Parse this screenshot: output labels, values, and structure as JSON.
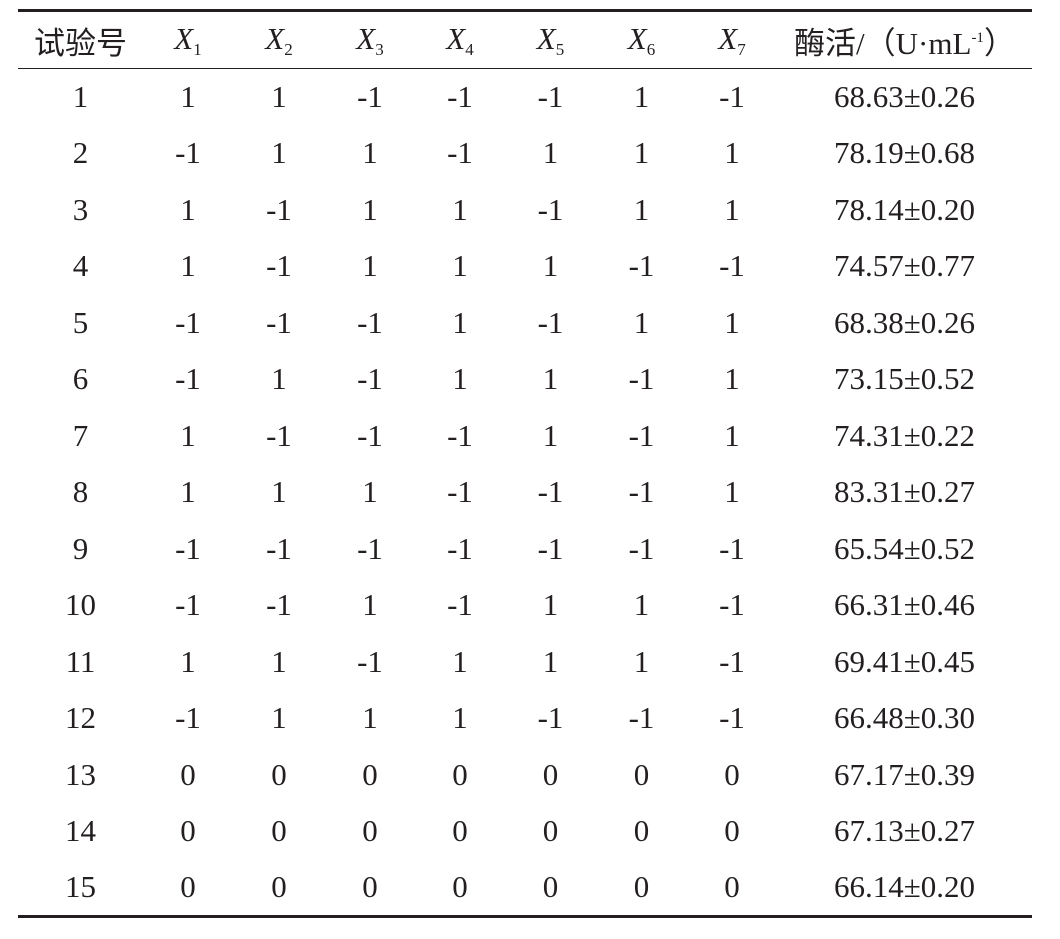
{
  "table": {
    "headers": {
      "trial": "试验号",
      "factors": [
        {
          "var": "X",
          "sub": "1"
        },
        {
          "var": "X",
          "sub": "2"
        },
        {
          "var": "X",
          "sub": "3"
        },
        {
          "var": "X",
          "sub": "4"
        },
        {
          "var": "X",
          "sub": "5"
        },
        {
          "var": "X",
          "sub": "6"
        },
        {
          "var": "X",
          "sub": "7"
        }
      ],
      "activity": "酶活/（U·mL",
      "activity_sup": "-1",
      "activity_close": "）"
    },
    "rows": [
      [
        "1",
        "1",
        "1",
        "-1",
        "-1",
        "-1",
        "1",
        "-1",
        "68.63±0.26"
      ],
      [
        "2",
        "-1",
        "1",
        "1",
        "-1",
        "1",
        "1",
        "1",
        "78.19±0.68"
      ],
      [
        "3",
        "1",
        "-1",
        "1",
        "1",
        "-1",
        "1",
        "1",
        "78.14±0.20"
      ],
      [
        "4",
        "1",
        "-1",
        "1",
        "1",
        "1",
        "-1",
        "-1",
        "74.57±0.77"
      ],
      [
        "5",
        "-1",
        "-1",
        "-1",
        "1",
        "-1",
        "1",
        "1",
        "68.38±0.26"
      ],
      [
        "6",
        "-1",
        "1",
        "-1",
        "1",
        "1",
        "-1",
        "1",
        "73.15±0.52"
      ],
      [
        "7",
        "1",
        "-1",
        "-1",
        "-1",
        "1",
        "-1",
        "1",
        "74.31±0.22"
      ],
      [
        "8",
        "1",
        "1",
        "1",
        "-1",
        "-1",
        "-1",
        "1",
        "83.31±0.27"
      ],
      [
        "9",
        "-1",
        "-1",
        "-1",
        "-1",
        "-1",
        "-1",
        "-1",
        "65.54±0.52"
      ],
      [
        "10",
        "-1",
        "-1",
        "1",
        "-1",
        "1",
        "1",
        "-1",
        "66.31±0.46"
      ],
      [
        "11",
        "1",
        "1",
        "-1",
        "1",
        "1",
        "1",
        "-1",
        "69.41±0.45"
      ],
      [
        "12",
        "-1",
        "1",
        "1",
        "1",
        "-1",
        "-1",
        "-1",
        "66.48±0.30"
      ],
      [
        "13",
        "0",
        "0",
        "0",
        "0",
        "0",
        "0",
        "0",
        "67.17±0.39"
      ],
      [
        "14",
        "0",
        "0",
        "0",
        "0",
        "0",
        "0",
        "0",
        "67.13±0.27"
      ],
      [
        "15",
        "0",
        "0",
        "0",
        "0",
        "0",
        "0",
        "0",
        "66.14±0.20"
      ]
    ]
  }
}
